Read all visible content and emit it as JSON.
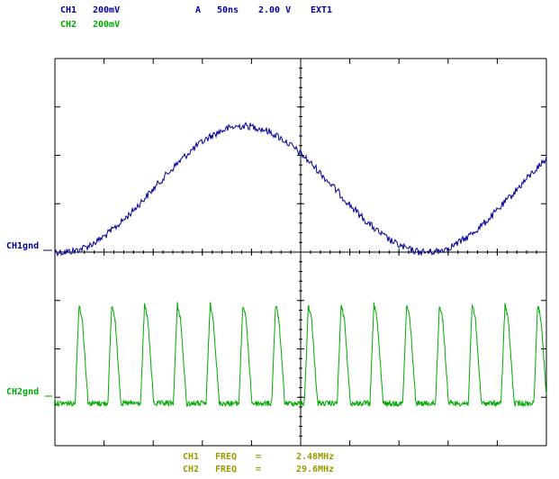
{
  "header": {
    "ch1_label": "CH1",
    "ch1_scale": "200mV",
    "ch2_label": "CH2",
    "ch2_scale": "200mV",
    "acq_mode": "A",
    "timebase": "50ns",
    "trigger_level": "2.00 V",
    "trigger_source": "EXT1"
  },
  "markers": {
    "ch1_ground": "CH1gnd",
    "ch2_ground": "CH2gnd"
  },
  "measurements": [
    {
      "channel": "CH1",
      "param": "FREQ",
      "eq": "=",
      "value": "2.48MHz"
    },
    {
      "channel": "CH2",
      "param": "FREQ",
      "eq": "=",
      "value": "29.6MHz"
    }
  ],
  "colors": {
    "ch1": "#000099",
    "ch2": "#00aa00",
    "measure": "#999900",
    "grid": "#000000",
    "background": "#ffffff"
  }
}
